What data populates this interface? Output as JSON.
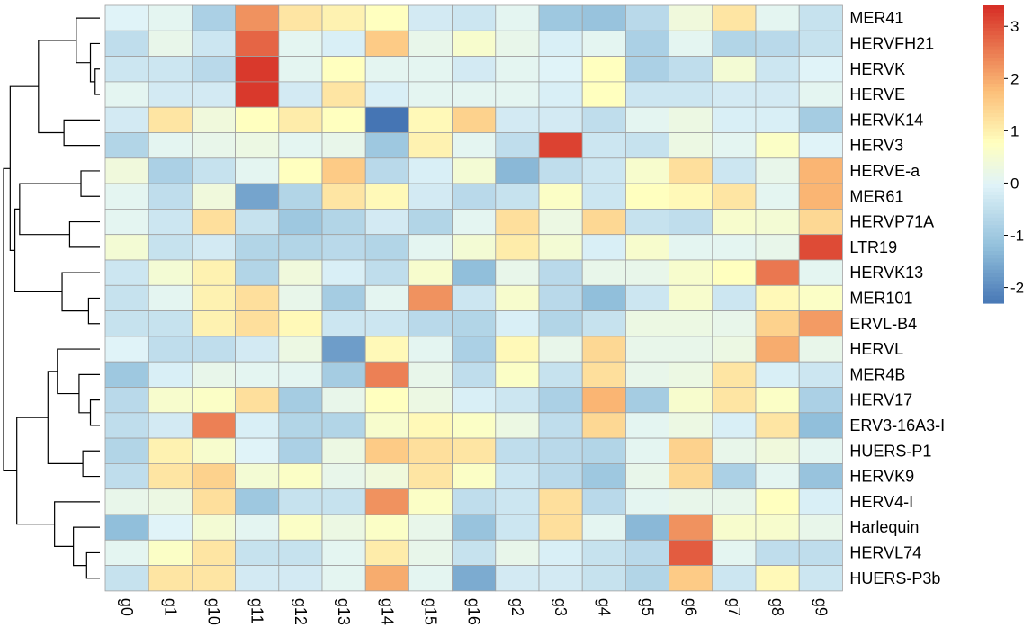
{
  "chart_data": {
    "type": "heatmap",
    "columns": [
      "g0",
      "g1",
      "g10",
      "g11",
      "g12",
      "g13",
      "g14",
      "g15",
      "g16",
      "g2",
      "g3",
      "g4",
      "g5",
      "g6",
      "g7",
      "g8",
      "g9"
    ],
    "rows": [
      "MER41",
      "HERVFH21",
      "HERVK",
      "HERVE",
      "HERVK14",
      "HERV3",
      "HERVE-a",
      "MER61",
      "HERVP71A",
      "LTR19",
      "HERVK13",
      "MER101",
      "ERVL-B4",
      "HERVL",
      "MER4B",
      "HERV17",
      "ERV3-16A3-I",
      "HUERS-P1",
      "HERVK9",
      "HERV4-I",
      "Harlequin",
      "HERVL74",
      "HUERS-P3b"
    ],
    "values": [
      [
        0.0,
        0.1,
        -0.8,
        2.3,
        1.2,
        1.0,
        0.8,
        -0.2,
        -0.3,
        0.1,
        -1.0,
        -1.1,
        -0.6,
        0.4,
        1.2,
        0.1,
        -0.4
      ],
      [
        -0.5,
        0.2,
        -0.3,
        2.8,
        0.1,
        -0.1,
        1.6,
        0.2,
        0.6,
        0.2,
        -0.1,
        0.1,
        -0.8,
        0.1,
        -0.7,
        -0.6,
        -0.4
      ],
      [
        -0.3,
        -0.3,
        -0.6,
        3.3,
        0.1,
        0.8,
        0.1,
        0.1,
        -0.2,
        0.1,
        0.0,
        0.8,
        -0.8,
        -0.5,
        0.5,
        -0.3,
        0.0
      ],
      [
        0.1,
        -0.2,
        -0.2,
        3.3,
        -0.2,
        1.2,
        -0.1,
        0.1,
        0.1,
        0.1,
        -0.1,
        0.8,
        -0.3,
        -0.3,
        -0.2,
        -0.2,
        0.1
      ],
      [
        -0.2,
        1.2,
        0.4,
        0.8,
        1.1,
        0.8,
        -2.3,
        0.9,
        1.5,
        -0.2,
        -0.2,
        -0.5,
        0.1,
        0.3,
        -0.1,
        -0.1,
        -0.9
      ],
      [
        -0.7,
        0.1,
        0.2,
        0.3,
        0.1,
        0.2,
        -1.0,
        1.0,
        0.1,
        -0.5,
        3.2,
        -0.3,
        -0.4,
        0.3,
        0.1,
        0.7,
        0.0
      ],
      [
        0.4,
        -0.8,
        -0.4,
        0.1,
        0.8,
        1.6,
        -0.6,
        -0.1,
        0.5,
        -1.3,
        -0.5,
        -0.3,
        0.6,
        1.3,
        -0.3,
        0.2,
        1.9
      ],
      [
        0.1,
        -0.5,
        0.4,
        -1.6,
        -0.7,
        1.2,
        0.9,
        -0.2,
        -0.6,
        -0.4,
        0.7,
        -0.3,
        0.8,
        0.9,
        1.2,
        0.1,
        1.9
      ],
      [
        0.1,
        -0.3,
        1.3,
        -0.4,
        -1.0,
        -0.7,
        -0.2,
        -0.7,
        0.1,
        1.3,
        0.3,
        1.4,
        -0.4,
        -0.5,
        0.6,
        0.5,
        1.4
      ],
      [
        0.5,
        -0.4,
        -0.2,
        -0.7,
        -0.7,
        -0.6,
        -0.7,
        0.1,
        0.5,
        1.1,
        0.5,
        -0.1,
        0.6,
        0.1,
        0.1,
        0.2,
        3.1
      ],
      [
        -0.3,
        0.5,
        1.0,
        -0.7,
        0.4,
        -0.1,
        -0.5,
        0.6,
        -1.2,
        0.2,
        -0.6,
        0.2,
        0.2,
        0.6,
        0.8,
        2.6,
        0.1
      ],
      [
        -0.4,
        0.1,
        1.0,
        1.3,
        0.2,
        -0.9,
        0.1,
        2.3,
        -0.3,
        0.6,
        -0.6,
        -1.2,
        -0.3,
        0.6,
        -0.3,
        0.9,
        0.7
      ],
      [
        -0.4,
        -0.4,
        1.0,
        1.3,
        0.9,
        -0.3,
        -0.3,
        -0.6,
        -0.7,
        -0.1,
        -0.7,
        -0.4,
        0.3,
        0.3,
        0.2,
        1.5,
        2.2
      ],
      [
        0.0,
        -0.5,
        -0.5,
        -0.2,
        0.3,
        -1.7,
        0.9,
        0.1,
        -0.8,
        0.9,
        0.2,
        1.4,
        0.2,
        0.2,
        0.3,
        2.0,
        0.2
      ],
      [
        -1.0,
        -0.1,
        0.2,
        0.1,
        0.1,
        -0.9,
        2.5,
        0.2,
        -0.5,
        0.7,
        -0.4,
        1.3,
        0.2,
        0.3,
        1.2,
        -0.1,
        -0.3
      ],
      [
        -0.6,
        0.6,
        0.7,
        1.3,
        -0.9,
        0.2,
        0.8,
        0.3,
        -0.1,
        -0.3,
        -0.8,
        1.9,
        -0.9,
        0.6,
        1.2,
        0.7,
        -0.8
      ],
      [
        -0.5,
        -0.2,
        2.5,
        -0.1,
        -0.7,
        -0.7,
        0.6,
        0.9,
        0.7,
        0.3,
        -0.5,
        1.4,
        0.1,
        0.3,
        -0.1,
        1.2,
        -1.2
      ],
      [
        -0.7,
        1.0,
        0.6,
        0.0,
        -0.8,
        0.3,
        1.6,
        1.3,
        1.2,
        -0.5,
        -0.6,
        -0.7,
        0.1,
        1.5,
        0.2,
        0.4,
        0.1
      ],
      [
        -0.5,
        1.2,
        1.5,
        0.5,
        0.7,
        0.2,
        0.4,
        1.2,
        0.7,
        -0.3,
        -0.6,
        -1.0,
        0.2,
        1.4,
        -0.8,
        0.1,
        -1.1
      ],
      [
        0.2,
        0.3,
        1.3,
        -1.0,
        -0.4,
        -0.4,
        2.3,
        0.7,
        -0.5,
        -0.3,
        1.3,
        -0.6,
        0.1,
        0.2,
        0.2,
        0.8,
        -0.1
      ],
      [
        -1.2,
        0.0,
        0.5,
        0.1,
        0.7,
        0.3,
        0.7,
        0.2,
        -1.1,
        -0.3,
        1.3,
        0.1,
        -1.3,
        2.3,
        0.6,
        0.6,
        0.2
      ],
      [
        0.1,
        0.7,
        1.2,
        -0.4,
        -0.4,
        0.1,
        1.1,
        0.2,
        -0.4,
        0.2,
        -0.1,
        -0.4,
        -0.6,
        2.9,
        0.1,
        -0.5,
        -0.5
      ],
      [
        -0.4,
        1.2,
        1.2,
        -0.2,
        -0.2,
        0.1,
        2.0,
        0.1,
        -1.5,
        -0.2,
        -0.2,
        -0.4,
        -0.7,
        1.6,
        -0.3,
        0.9,
        -0.3
      ]
    ],
    "colorbar": {
      "min": -2.3,
      "max": 3.4,
      "ticks": [
        -2,
        -1,
        0,
        1,
        2,
        3
      ],
      "tick_labels": [
        "-2",
        "-1",
        "0",
        "1",
        "2",
        "3"
      ],
      "low_color": "#4575b4",
      "mid_color": "#ffffbf",
      "high_color": "#d73027"
    },
    "dendrogram": "row clustering tree (left side)"
  }
}
